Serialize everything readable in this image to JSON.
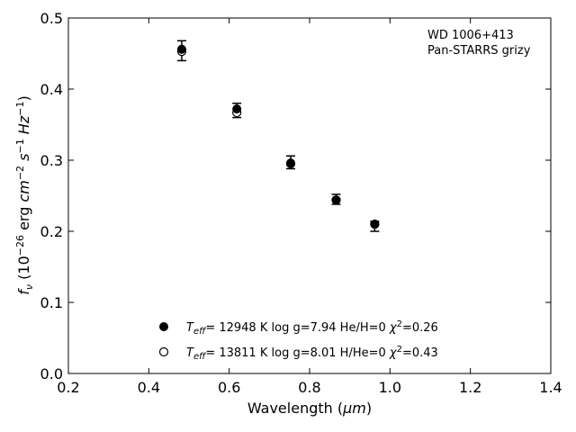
{
  "chart_data": {
    "type": "scatter",
    "xlabel_main": "Wavelength (",
    "xlabel_unit": "μm",
    "xlabel_tail": ")",
    "ylabel": "f_ν (10^-26 erg cm^-2 s^-1 Hz^-1)",
    "xlim": [
      0.2,
      1.4
    ],
    "ylim": [
      0.0,
      0.5
    ],
    "x_ticks": [
      "0.2",
      "0.4",
      "0.6",
      "0.8",
      "1.0",
      "1.2",
      "1.4"
    ],
    "y_ticks": [
      "0.0",
      "0.1",
      "0.2",
      "0.3",
      "0.4",
      "0.5"
    ],
    "annotation": [
      "WD 1006+413",
      "Pan-STARRS grizy"
    ],
    "grid": false,
    "legend_position": "bottom-center",
    "observed": {
      "x": [
        0.482,
        0.619,
        0.753,
        0.866,
        0.962
      ],
      "y": [
        0.454,
        0.37,
        0.297,
        0.245,
        0.207
      ],
      "yerr": [
        0.014,
        0.01,
        0.009,
        0.007,
        0.007
      ]
    },
    "series": [
      {
        "name": "Teff= 12948 K  log g=7.94  He/H=0  χ²=0.26",
        "marker": "filled-circle",
        "label_parts": {
          "t": "T",
          "sub": "eff",
          "rest": "= 12948 K  log g=7.94  He/H=0  ",
          "chi": "χ",
          "sup": "2",
          "tail": "=0.26"
        },
        "x": [
          0.482,
          0.619,
          0.753,
          0.866,
          0.962
        ],
        "y": [
          0.456,
          0.372,
          0.296,
          0.244,
          0.21
        ]
      },
      {
        "name": "Teff= 13811 K  log g=8.01  H/He=0  χ²=0.43",
        "marker": "open-circle",
        "label_parts": {
          "t": "T",
          "sub": "eff",
          "rest": "= 13811 K  log g=8.01  H/He=0  ",
          "chi": "χ",
          "sup": "2",
          "tail": "=0.43"
        },
        "x": [
          0.482,
          0.619,
          0.753,
          0.866,
          0.962
        ],
        "y": [
          0.453,
          0.367,
          0.295,
          0.244,
          0.21
        ]
      }
    ]
  }
}
